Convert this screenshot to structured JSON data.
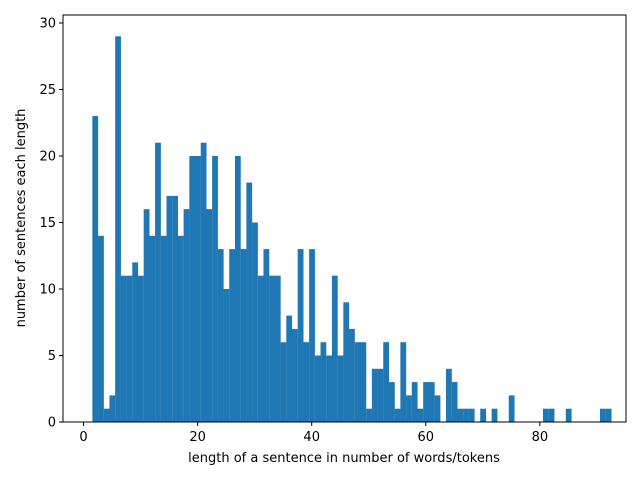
{
  "chart_data": {
    "type": "bar",
    "xlabel": "length of a sentence in number of words/tokens",
    "ylabel": "number of sentences each length",
    "xlim": [
      -3.6,
      95.1
    ],
    "ylim": [
      0,
      30.6
    ],
    "x_ticks": [
      0,
      20,
      40,
      60,
      80
    ],
    "y_ticks": [
      0,
      5,
      10,
      15,
      20,
      25,
      30
    ],
    "bar_color": "#1f77b4",
    "bin_width": 0.91,
    "x": [
      2,
      3,
      4,
      5,
      6,
      7,
      8,
      9,
      10,
      11,
      12,
      13,
      14,
      15,
      16,
      17,
      18,
      19,
      20,
      21,
      22,
      23,
      24,
      25,
      26,
      27,
      28,
      29,
      30,
      31,
      32,
      33,
      34,
      35,
      36,
      37,
      38,
      39,
      40,
      41,
      42,
      43,
      44,
      45,
      46,
      47,
      48,
      49,
      50,
      51,
      52,
      53,
      54,
      55,
      56,
      57,
      58,
      59,
      60,
      61,
      62,
      63,
      64,
      65,
      66,
      67,
      68,
      69,
      70,
      71,
      72,
      73,
      74,
      75,
      76,
      77,
      78,
      79,
      80,
      81,
      82,
      83,
      84,
      85,
      86,
      87,
      88,
      89,
      90,
      91,
      92
    ],
    "values": [
      23,
      14,
      1,
      2,
      29,
      11,
      11,
      12,
      11,
      16,
      14,
      21,
      14,
      17,
      17,
      14,
      16,
      20,
      20,
      21,
      16,
      20,
      13,
      10,
      13,
      20,
      13,
      18,
      15,
      11,
      13,
      11,
      11,
      6,
      8,
      7,
      13,
      6,
      13,
      5,
      6,
      5,
      11,
      5,
      9,
      7,
      6,
      6,
      1,
      4,
      4,
      6,
      3,
      1,
      6,
      2,
      3,
      1,
      3,
      3,
      2,
      0,
      4,
      3,
      1,
      1,
      1,
      0,
      1,
      0,
      1,
      0,
      0,
      2,
      0,
      0,
      0,
      0,
      0,
      1,
      1,
      0,
      0,
      1,
      0,
      0,
      0,
      0,
      0,
      1,
      1
    ]
  }
}
